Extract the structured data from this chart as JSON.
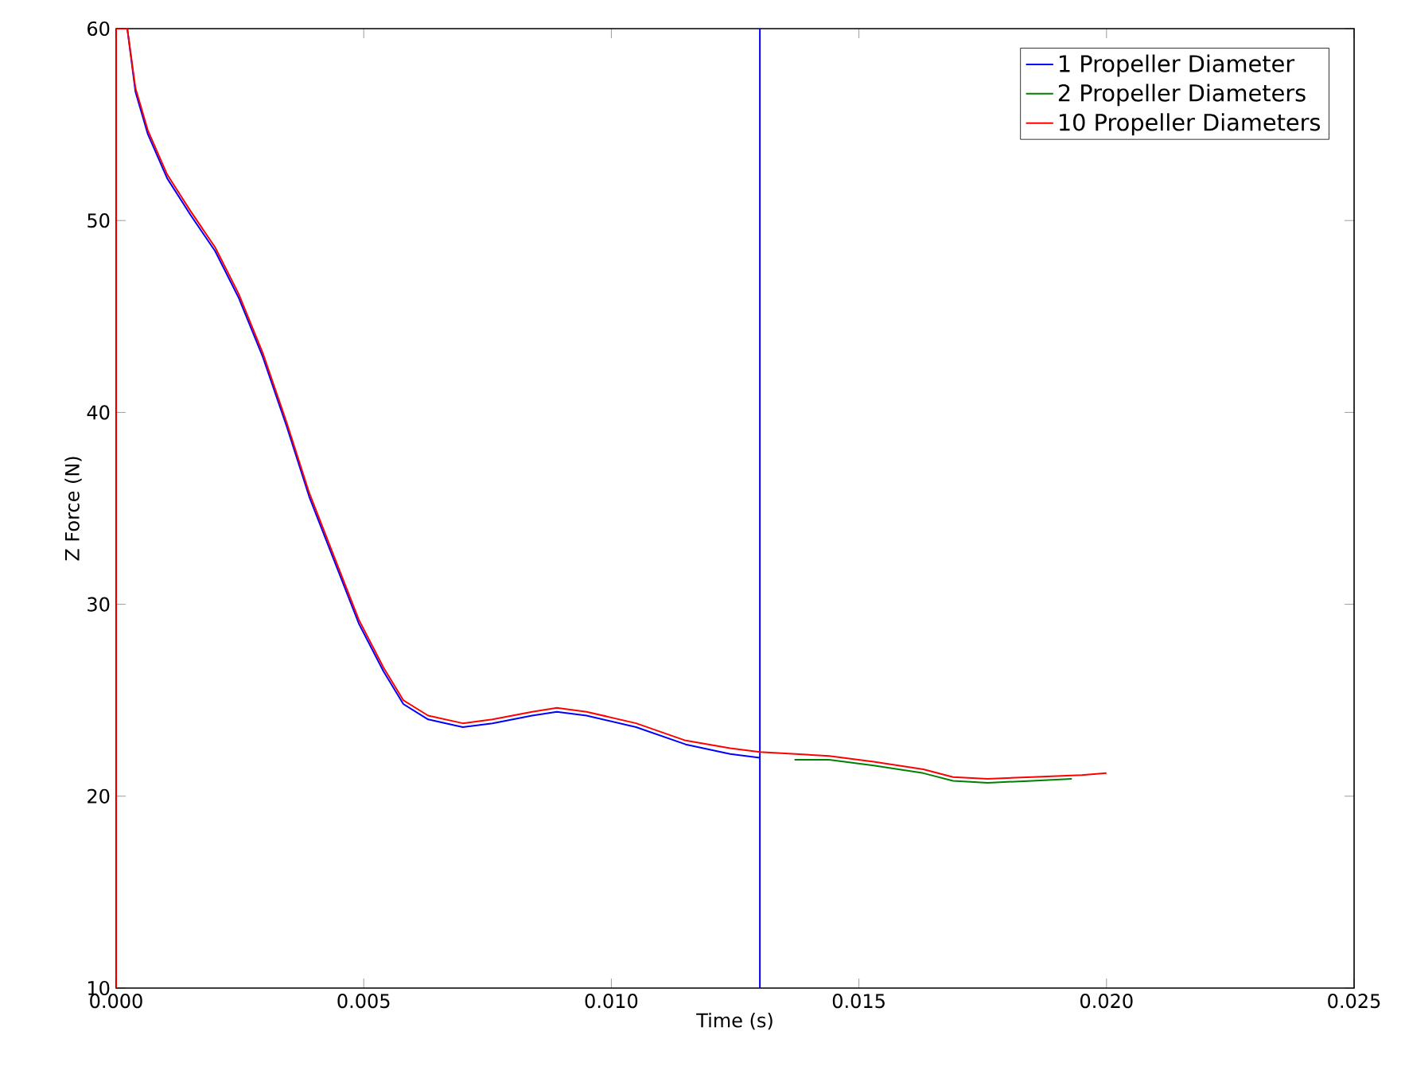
{
  "chart_data": {
    "type": "line",
    "xlabel": "Time (s)",
    "ylabel": "Z Force (N)",
    "xlim": [
      0,
      0.025
    ],
    "ylim": [
      10,
      60
    ],
    "xticks": [
      {
        "value": 0,
        "label": "0.000"
      },
      {
        "value": 0.005,
        "label": "0.005"
      },
      {
        "value": 0.01,
        "label": "0.010"
      },
      {
        "value": 0.015,
        "label": "0.015"
      },
      {
        "value": 0.02,
        "label": "0.020"
      },
      {
        "value": 0.025,
        "label": "0.025"
      }
    ],
    "yticks": [
      10,
      20,
      30,
      40,
      50,
      60
    ],
    "legend": "top right",
    "grid": false,
    "marker": "none",
    "line_style": "solid",
    "series": [
      {
        "name": "1 Propeller Diameter",
        "color": "#0000ff",
        "x": [
          0.000225,
          0.00039,
          0.00064,
          0.00103,
          0.0015,
          0.002,
          0.00247,
          0.00296,
          0.00344,
          0.0039,
          0.0044,
          0.0049,
          0.0054,
          0.0058,
          0.0063,
          0.007,
          0.0076,
          0.0084,
          0.0089,
          0.0095,
          0.0105,
          0.0115,
          0.0124,
          0.013,
          0.013,
          0.013
        ],
        "values": [
          60,
          56.7,
          54.5,
          52.2,
          50.3,
          48.4,
          46.0,
          42.9,
          39.3,
          35.6,
          32.3,
          29.0,
          26.5,
          24.8,
          24.0,
          23.6,
          23.8,
          24.2,
          24.4,
          24.2,
          23.6,
          22.7,
          22.2,
          22.0,
          60,
          10
        ]
      },
      {
        "name": "2 Propeller Diameters",
        "color": "#008000",
        "x": [
          0.0137,
          0.0144,
          0.0153,
          0.0163,
          0.0169,
          0.0176,
          0.0185,
          0.0193
        ],
        "values": [
          21.9,
          21.9,
          21.6,
          21.2,
          20.8,
          20.7,
          20.8,
          20.9
        ]
      },
      {
        "name": "10 Propeller Diameters",
        "color": "#ff0000",
        "x": [
          0,
          0,
          0.000225,
          0.00039,
          0.00064,
          0.00103,
          0.0015,
          0.002,
          0.00247,
          0.00296,
          0.00344,
          0.0039,
          0.0044,
          0.0049,
          0.0054,
          0.0058,
          0.0063,
          0.007,
          0.0076,
          0.0084,
          0.0089,
          0.0095,
          0.0105,
          0.0115,
          0.0124,
          0.013,
          0.0144,
          0.0153,
          0.0163,
          0.0169,
          0.0176,
          0.0185,
          0.0195,
          0.02
        ],
        "values": [
          10,
          60,
          60,
          56.9,
          54.7,
          52.4,
          50.5,
          48.6,
          46.2,
          43.1,
          39.5,
          35.8,
          32.5,
          29.2,
          26.7,
          25.0,
          24.2,
          23.8,
          24.0,
          24.4,
          24.6,
          24.4,
          23.8,
          22.9,
          22.5,
          22.3,
          22.1,
          21.8,
          21.4,
          21.0,
          20.9,
          21.0,
          21.1,
          21.2
        ]
      }
    ]
  }
}
